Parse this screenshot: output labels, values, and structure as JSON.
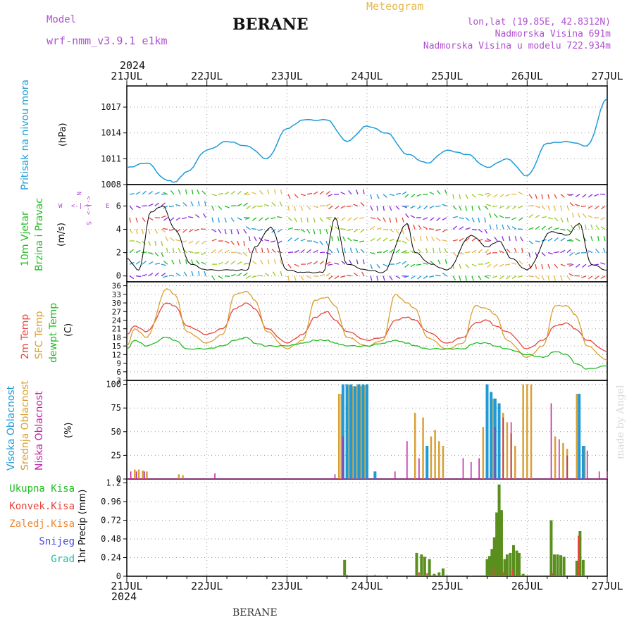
{
  "header": {
    "model_label": "Model",
    "model_name": "wrf-nmm_v3.9.1 e1km",
    "station": "BERANE",
    "meteogram": "Meteogram",
    "lonlat": "lon,lat (19.85E, 42.8312N)",
    "elevation": "Nadmorska Visina 691m",
    "model_elevation": "Nadmorska Visina u modelu 722.934m",
    "year": "2024",
    "footer_station": "BERANE",
    "credit": "made by Angel"
  },
  "colors": {
    "pressure": "#1e9bd7",
    "wind_speed": "#000000",
    "temp_2m": "#e8443a",
    "temp_sfc": "#d9a032",
    "dewpt": "#22bb22",
    "cloud_high": "#1e9bd7",
    "cloud_mid": "#d9a032",
    "cloud_low": "#c020a0",
    "precip_total": "#5a8f1e",
    "precip_conv": "#e8443a",
    "purple_text": "#b050d0",
    "meteogram_text": "#e6b84a"
  },
  "labels": {
    "pressure_axis": [
      "Pritisak na nivou mora",
      "(hPa)"
    ],
    "wind_axis": [
      "10m Vjetar",
      "Brzina i Pravac",
      "(m/s)"
    ],
    "wind_compass": [
      "W",
      "<-|->",
      "E",
      "N",
      "<-|->",
      "S"
    ],
    "temp_axis": [
      "2m Temp",
      "SFC Temp",
      "dewpt Temp",
      "(C)"
    ],
    "cloud_axis": [
      "Visoka Oblacnost",
      "Srednja Oblacnost",
      "Niska Oblacnost",
      "(%)"
    ],
    "precip_axis": "1hr Precip (mm)",
    "precip_legend": [
      "Ukupna Kisa",
      "Konvek.Kisa",
      "Zaledj.Kisa",
      "Snijeg",
      "Grad"
    ]
  },
  "chart_data": [
    {
      "type": "line",
      "name": "pressure",
      "ylim": [
        1008,
        1019
      ],
      "yticks": [
        1008,
        1011,
        1014,
        1017
      ],
      "x_days": [
        0,
        0.25,
        0.5,
        0.6,
        0.75,
        1.0,
        1.25,
        1.5,
        1.75,
        2.0,
        2.2,
        2.5,
        2.75,
        3.0,
        3.25,
        3.5,
        3.75,
        4.0,
        4.25,
        4.5,
        4.75,
        5.0,
        5.25,
        5.5,
        5.75,
        6.0
      ],
      "values": [
        1010.0,
        1010.5,
        1008.5,
        1008.3,
        1009.5,
        1012.0,
        1013.0,
        1012.5,
        1011.0,
        1014.5,
        1015.5,
        1015.5,
        1013.0,
        1014.8,
        1014.0,
        1011.5,
        1010.5,
        1012.0,
        1011.5,
        1010.0,
        1011.0,
        1009.0,
        1012.8,
        1013.0,
        1012.5,
        1018.0
      ]
    },
    {
      "type": "line",
      "name": "wind",
      "ylim": [
        -0.5,
        7.5
      ],
      "yticks": [
        0,
        2,
        4,
        6
      ],
      "x_days": [
        0,
        0.15,
        0.3,
        0.45,
        0.6,
        0.8,
        1.0,
        1.3,
        1.5,
        1.6,
        1.8,
        2.0,
        2.2,
        2.45,
        2.6,
        2.75,
        3.0,
        3.2,
        3.5,
        3.6,
        3.8,
        4.0,
        4.3,
        4.5,
        4.65,
        4.8,
        5.0,
        5.3,
        5.5,
        5.65,
        5.8,
        6.0
      ],
      "values": [
        1.5,
        0.5,
        5.5,
        6.0,
        4.0,
        1.0,
        0.5,
        0.5,
        0.5,
        2.5,
        4.2,
        0.5,
        0.3,
        0.3,
        5.0,
        1.0,
        0.5,
        0.3,
        4.5,
        2.0,
        1.0,
        0.5,
        3.5,
        2.5,
        3.0,
        1.5,
        0.5,
        3.8,
        3.5,
        4.5,
        1.0,
        0.5
      ]
    },
    {
      "type": "line",
      "name": "temperature",
      "ylim": [
        3,
        36
      ],
      "yticks": [
        3,
        6,
        9,
        12,
        15,
        18,
        21,
        24,
        27,
        30,
        33,
        36
      ],
      "x_days": [
        0,
        0.1,
        0.25,
        0.5,
        0.6,
        0.75,
        1.0,
        1.2,
        1.35,
        1.5,
        1.6,
        1.75,
        2.0,
        2.2,
        2.35,
        2.5,
        2.6,
        2.75,
        3.0,
        3.2,
        3.35,
        3.5,
        3.6,
        3.75,
        4.0,
        4.2,
        4.35,
        4.5,
        4.6,
        4.75,
        5.0,
        5.2,
        5.35,
        5.5,
        5.6,
        5.75,
        6.0
      ],
      "series": [
        {
          "name": "2m Temp",
          "values": [
            19,
            22,
            20,
            30,
            29,
            22,
            19,
            21,
            28,
            30,
            28,
            21,
            16,
            19,
            25,
            27,
            24,
            20,
            17,
            18,
            24,
            25,
            24,
            20,
            16,
            18,
            23,
            24,
            22,
            20,
            14,
            17,
            22,
            23,
            21,
            17,
            13
          ]
        },
        {
          "name": "SFC Temp",
          "values": [
            15,
            21,
            18,
            35,
            33,
            20,
            16,
            19,
            33,
            34,
            31,
            20,
            14,
            17,
            31,
            32,
            29,
            18,
            15,
            17,
            33,
            30,
            28,
            18,
            14,
            16,
            29,
            28,
            26,
            17,
            11,
            15,
            29,
            29,
            26,
            15,
            10
          ]
        },
        {
          "name": "dewpt Temp",
          "values": [
            14,
            17,
            15,
            18,
            17,
            14,
            14,
            15,
            17,
            18,
            16,
            15,
            15,
            16,
            17,
            17,
            16,
            15,
            15,
            16,
            17,
            16,
            15,
            14,
            14,
            14,
            16,
            16,
            15,
            14,
            12,
            11,
            13,
            12,
            9,
            7,
            8
          ]
        }
      ]
    },
    {
      "type": "bar",
      "name": "cloud",
      "ylim": [
        0,
        100
      ],
      "yticks": [
        0,
        25,
        50,
        75,
        100
      ],
      "series": [
        {
          "name": "Visoka Oblacnost",
          "x_days": [
            2.7,
            2.75,
            2.8,
            2.85,
            2.9,
            2.95,
            3.0,
            3.1,
            3.75,
            4.5,
            4.55,
            4.6,
            4.65,
            5.65,
            5.7
          ],
          "values": [
            100,
            100,
            100,
            98,
            100,
            100,
            100,
            8,
            35,
            100,
            92,
            85,
            80,
            90,
            35
          ]
        },
        {
          "name": "Srednja Oblacnost",
          "x_days": [
            0.1,
            0.15,
            0.2,
            0.25,
            0.65,
            0.7,
            2.65,
            2.68,
            2.78,
            2.82,
            2.88,
            2.92,
            2.97,
            3.6,
            3.7,
            3.8,
            3.85,
            3.9,
            3.95,
            4.45,
            4.5,
            4.58,
            4.7,
            4.75,
            4.8,
            4.85,
            4.95,
            5.0,
            5.05,
            5.35,
            5.45,
            5.5,
            5.62,
            5.72
          ],
          "values": [
            10,
            10,
            9,
            8,
            5,
            4,
            90,
            90,
            99,
            98,
            100,
            98,
            99,
            70,
            65,
            45,
            52,
            40,
            35,
            55,
            95,
            85,
            70,
            60,
            48,
            35,
            100,
            100,
            100,
            45,
            38,
            32,
            90,
            35
          ]
        },
        {
          "name": "Niska Oblacnost",
          "x_days": [
            0.05,
            0.12,
            0.22,
            1.1,
            2.6,
            2.7,
            3.35,
            3.5,
            3.65,
            4.2,
            4.3,
            4.4,
            4.6,
            4.7,
            4.8,
            5.3,
            5.4,
            5.5,
            5.75,
            5.9,
            6.0
          ],
          "values": [
            8,
            8,
            8,
            6,
            5,
            45,
            8,
            40,
            22,
            22,
            18,
            22,
            55,
            65,
            60,
            80,
            42,
            25,
            30,
            8,
            8
          ]
        }
      ]
    },
    {
      "type": "bar",
      "name": "precip",
      "ylim": [
        0,
        1.2
      ],
      "yticks": [
        0,
        0.24,
        0.48,
        0.72,
        0.96,
        1.2
      ],
      "series": [
        {
          "name": "Ukupna Kisa",
          "x_days": [
            1.7,
            2.72,
            3.2,
            3.62,
            3.68,
            3.72,
            3.78,
            3.84,
            3.9,
            3.95,
            4.3,
            4.5,
            4.53,
            4.56,
            4.59,
            4.62,
            4.65,
            4.68,
            4.72,
            4.75,
            4.79,
            4.83,
            4.87,
            4.9,
            4.95,
            5.3,
            5.34,
            5.38,
            5.42,
            5.46,
            5.62,
            5.66,
            5.7
          ],
          "values": [
            0.01,
            0.21,
            0.01,
            0.3,
            0.28,
            0.25,
            0.22,
            0.03,
            0.05,
            0.1,
            0.01,
            0.22,
            0.26,
            0.35,
            0.5,
            0.82,
            1.18,
            0.85,
            0.22,
            0.28,
            0.3,
            0.4,
            0.33,
            0.3,
            0.03,
            0.72,
            0.28,
            0.28,
            0.27,
            0.25,
            0.2,
            0.58,
            0.21
          ]
        },
        {
          "name": "Konvek.Kisa",
          "x_days": [
            2.75,
            3.1,
            3.65,
            3.75,
            4.58,
            4.7,
            4.82,
            5.32,
            5.64
          ],
          "values": [
            0.02,
            0.02,
            0.05,
            0.04,
            0.1,
            0.05,
            0.08,
            0.04,
            0.52
          ]
        }
      ]
    }
  ],
  "x_axis": {
    "top_ticks": [
      "21JUL",
      "22JUL",
      "23JUL",
      "24JUL",
      "25JUL",
      "26JUL",
      "27JUL"
    ],
    "bottom_ticks": [
      "21JUL",
      "22JUL",
      "23JUL",
      "24JUL",
      "25JUL",
      "26JUL",
      "27JUL"
    ],
    "days": 6
  }
}
